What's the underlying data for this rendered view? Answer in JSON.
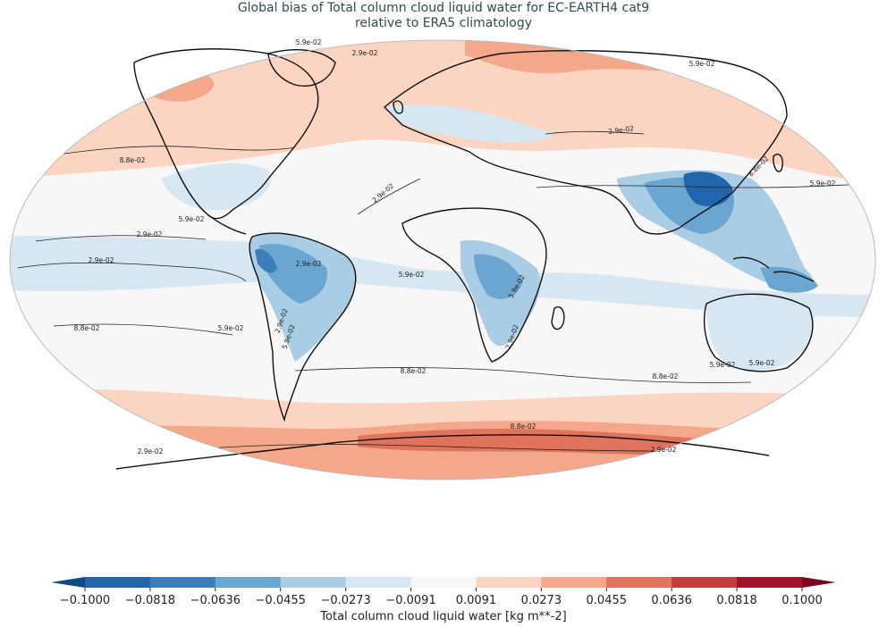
{
  "title_line1": "Global bias of Total column cloud liquid water for EC-EARTH4 cat9",
  "title_line2": "relative to ERA5 climatology",
  "colorbar": {
    "label": "Total column cloud liquid water [kg m**-2]",
    "ticks": [
      "−0.1000",
      "−0.0818",
      "−0.0636",
      "−0.0455",
      "−0.0273",
      "−0.0091",
      "0.0091",
      "0.0273",
      "0.0455",
      "0.0636",
      "0.0818",
      "0.1000"
    ],
    "colors": [
      "#2166ac",
      "#3a7fba",
      "#6aa6d0",
      "#a9cde4",
      "#d6e7f2",
      "#f7f7f7",
      "#fbd5c2",
      "#f4a889",
      "#df735c",
      "#c43b3b",
      "#a3112a"
    ],
    "under_color": "#0f4a89",
    "over_color": "#7a0621"
  },
  "contour_labels": [
    {
      "text": "5.9e-02"
    },
    {
      "text": "2.9e-02"
    },
    {
      "text": "5.9e-02"
    },
    {
      "text": "2.9e-02"
    },
    {
      "text": "8.8e-02"
    },
    {
      "text": "2.9e-02"
    },
    {
      "text": "5.9e-02"
    },
    {
      "text": "2.9e-02"
    },
    {
      "text": "2.9e-02"
    },
    {
      "text": "5.9e-02"
    },
    {
      "text": "8.8e-02"
    },
    {
      "text": "5.9e-02"
    },
    {
      "text": "2.9e-02"
    },
    {
      "text": "5.9e-02"
    },
    {
      "text": "2.9e-02"
    },
    {
      "text": "2.9e-02"
    },
    {
      "text": "8.8e-02"
    },
    {
      "text": "8.8e-02"
    },
    {
      "text": "5.9e-02"
    },
    {
      "text": "5.9e-02"
    },
    {
      "text": "8.8e-02"
    },
    {
      "text": "8.8e-02"
    },
    {
      "text": "5.9e-02"
    },
    {
      "text": "5.9e-02"
    },
    {
      "text": "2.9e-02"
    },
    {
      "text": "2.9e-02"
    }
  ],
  "colors": {
    "ocean_neutral": "#f7f7f7",
    "frame": "#bbbbbb",
    "coast": "#111111"
  }
}
